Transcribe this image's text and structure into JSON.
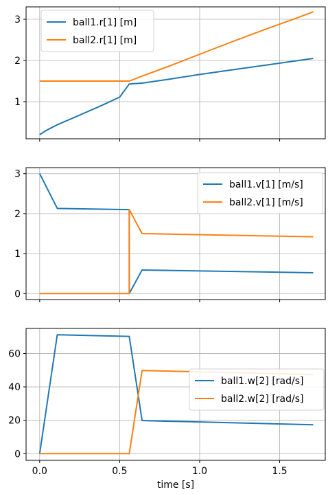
{
  "chart_data": [
    {
      "type": "line",
      "title": "",
      "xlabel": "",
      "ylabel": "",
      "xlim": [
        -0.085,
        1.785
      ],
      "ylim": [
        0.1,
        3.3
      ],
      "xticks": [
        0.0,
        0.5,
        1.0,
        1.5
      ],
      "xtick_labels_visible": false,
      "yticks": [
        1,
        2,
        3
      ],
      "ytick_labels": [
        "1",
        "2",
        "3"
      ],
      "grid": true,
      "legend_position": "top-left",
      "series": [
        {
          "name": "ball1.r[1] [m]",
          "color": "#1f77b4",
          "x": [
            0.0,
            0.04,
            0.08,
            0.11,
            0.2,
            0.3,
            0.4,
            0.5,
            0.56,
            0.64,
            0.8,
            1.0,
            1.2,
            1.4,
            1.6,
            1.71
          ],
          "y": [
            0.2,
            0.3,
            0.38,
            0.44,
            0.59,
            0.76,
            0.93,
            1.11,
            1.43,
            1.45,
            1.54,
            1.66,
            1.77,
            1.88,
            1.99,
            2.05
          ]
        },
        {
          "name": "ball2.r[1] [m]",
          "color": "#ff7f0e",
          "x": [
            0.0,
            0.2,
            0.4,
            0.56,
            0.64,
            0.8,
            1.0,
            1.2,
            1.4,
            1.6,
            1.71
          ],
          "y": [
            1.5,
            1.5,
            1.5,
            1.5,
            1.62,
            1.85,
            2.15,
            2.45,
            2.74,
            3.02,
            3.18
          ]
        }
      ]
    },
    {
      "type": "line",
      "title": "",
      "xlabel": "",
      "ylabel": "",
      "xlim": [
        -0.085,
        1.785
      ],
      "ylim": [
        -0.15,
        3.15
      ],
      "xticks": [
        0.0,
        0.5,
        1.0,
        1.5
      ],
      "xtick_labels_visible": false,
      "yticks": [
        0,
        1,
        2,
        3
      ],
      "ytick_labels": [
        "0",
        "1",
        "2",
        "3"
      ],
      "grid": true,
      "legend_position": "top-right",
      "series": [
        {
          "name": "ball1.v[1] [m/s]",
          "color": "#1f77b4",
          "x": [
            0.0,
            0.11,
            0.56,
            0.56,
            0.64,
            1.71
          ],
          "y": [
            3.0,
            2.13,
            2.1,
            0.0,
            0.59,
            0.52
          ]
        },
        {
          "name": "ball2.v[1] [m/s]",
          "color": "#ff7f0e",
          "x": [
            0.0,
            0.56,
            0.56,
            0.64,
            1.71
          ],
          "y": [
            0.0,
            0.0,
            2.1,
            1.5,
            1.42
          ]
        }
      ]
    },
    {
      "type": "line",
      "title": "",
      "xlabel": "time [s]",
      "ylabel": "",
      "xlim": [
        -0.085,
        1.785
      ],
      "ylim": [
        -4.0,
        75.0
      ],
      "xticks": [
        0.0,
        0.5,
        1.0,
        1.5
      ],
      "xtick_labels": [
        "0.0",
        "0.5",
        "1.0",
        "1.5"
      ],
      "xtick_labels_visible": true,
      "yticks": [
        0,
        20,
        40,
        60
      ],
      "ytick_labels": [
        "0",
        "20",
        "40",
        "60"
      ],
      "grid": true,
      "legend_position": "center-right",
      "series": [
        {
          "name": "ball1.w[2] [rad/s]",
          "color": "#1f77b4",
          "x": [
            0.0,
            0.11,
            0.56,
            0.64,
            1.71
          ],
          "y": [
            0.0,
            71.2,
            70.2,
            19.8,
            17.3
          ]
        },
        {
          "name": "ball2.w[2] [rad/s]",
          "color": "#ff7f0e",
          "x": [
            0.0,
            0.56,
            0.64,
            1.71
          ],
          "y": [
            0.0,
            0.0,
            49.8,
            47.4
          ]
        }
      ]
    }
  ]
}
